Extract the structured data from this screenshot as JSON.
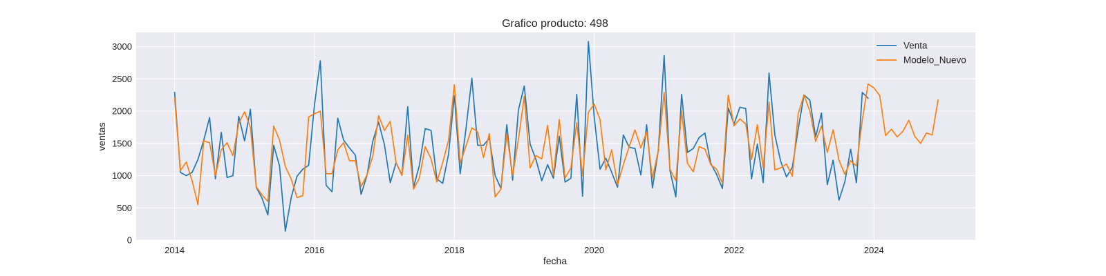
{
  "chart_data": {
    "type": "line",
    "title": "Grafico producto: 498",
    "xlabel": "fecha",
    "ylabel": "ventas",
    "xlim": [
      2013.45,
      2025.45
    ],
    "ylim": [
      0,
      3220
    ],
    "xticks": [
      2014,
      2016,
      2018,
      2020,
      2022,
      2024
    ],
    "xtick_labels": [
      "2014",
      "2016",
      "2018",
      "2020",
      "2022",
      "2024"
    ],
    "yticks": [
      0,
      500,
      1000,
      1500,
      2000,
      2500,
      3000
    ],
    "ytick_labels": [
      "0",
      "500",
      "1000",
      "1500",
      "2000",
      "2500",
      "3000"
    ],
    "grid": true,
    "legend": "top-right",
    "x_start": 2014,
    "x_step": 0.08333,
    "series": [
      {
        "name": "Venta",
        "color": "#1f77b4",
        "values": [
          2290,
          1050,
          1000,
          1050,
          1250,
          1550,
          1900,
          950,
          1670,
          970,
          1000,
          1920,
          1540,
          2030,
          820,
          650,
          390,
          1470,
          1150,
          140,
          660,
          990,
          1100,
          1160,
          2100,
          2780,
          850,
          750,
          1890,
          1550,
          1430,
          1320,
          710,
          1000,
          1530,
          1830,
          1480,
          890,
          1200,
          1010,
          2070,
          820,
          1160,
          1730,
          1700,
          950,
          880,
          1330,
          2240,
          1030,
          1730,
          2510,
          1470,
          1470,
          1580,
          1000,
          800,
          1790,
          930,
          2020,
          2390,
          1490,
          1250,
          920,
          1170,
          960,
          1610,
          900,
          960,
          2260,
          680,
          3080,
          1910,
          1100,
          1270,
          1050,
          820,
          1630,
          1440,
          1420,
          1010,
          1790,
          810,
          1390,
          2860,
          1080,
          670,
          2260,
          1360,
          1420,
          1590,
          1660,
          1190,
          1020,
          800,
          2050,
          1800,
          2060,
          2040,
          950,
          1490,
          890,
          2590,
          1630,
          1220,
          980,
          1130,
          1720,
          2250,
          2170,
          1600,
          1970,
          860,
          1240,
          620,
          900,
          1410,
          890,
          2290,
          2200
        ]
      },
      {
        "name": "Modelo_Nuevo",
        "color": "#ff7f0e",
        "values": [
          2200,
          1080,
          1210,
          920,
          550,
          1540,
          1510,
          1000,
          1400,
          1510,
          1310,
          1810,
          1990,
          1750,
          830,
          700,
          600,
          1770,
          1550,
          1140,
          950,
          660,
          690,
          1910,
          1960,
          2000,
          1030,
          1030,
          1400,
          1510,
          1230,
          1230,
          830,
          1010,
          1300,
          1930,
          1700,
          1840,
          1200,
          1000,
          1630,
          790,
          960,
          1450,
          1260,
          900,
          1200,
          1550,
          2410,
          1190,
          1460,
          1740,
          1680,
          1280,
          1650,
          670,
          790,
          1650,
          1000,
          1560,
          2230,
          1120,
          1310,
          1260,
          1780,
          1000,
          1870,
          960,
          1120,
          1820,
          1000,
          1980,
          2110,
          1870,
          1090,
          1400,
          860,
          1170,
          1450,
          1710,
          1430,
          1680,
          960,
          1390,
          2290,
          1100,
          920,
          2000,
          1190,
          1060,
          1450,
          1410,
          1170,
          1100,
          880,
          2250,
          1770,
          1880,
          1800,
          1250,
          1790,
          1120,
          2140,
          1090,
          1120,
          1180,
          990,
          1960,
          2250,
          2000,
          1530,
          1770,
          1360,
          1710,
          1240,
          1020,
          1230,
          1150,
          1860,
          2420,
          2360,
          2240,
          1620,
          1720,
          1600,
          1690,
          1860,
          1610,
          1500,
          1660,
          1630,
          2170
        ]
      }
    ]
  }
}
